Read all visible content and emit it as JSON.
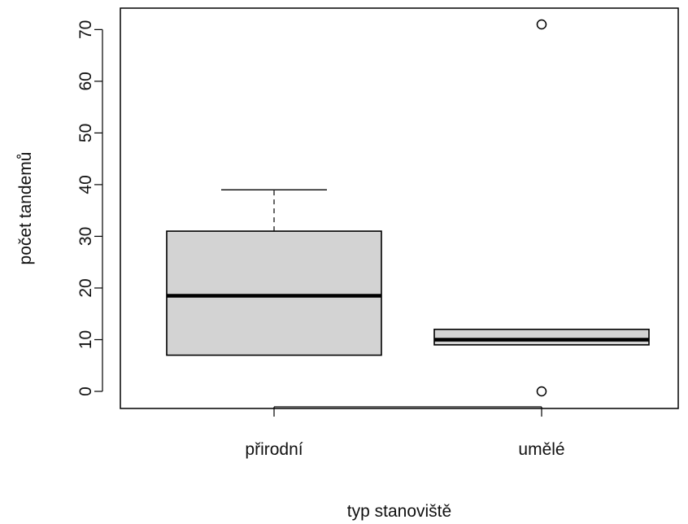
{
  "chart_data": {
    "type": "boxplot",
    "title": "",
    "xlabel": "typ stanoviště",
    "ylabel": "počet tandemů",
    "categories": [
      "přirodní",
      "umělé"
    ],
    "ylim": [
      -3,
      74
    ],
    "yticks": [
      0,
      10,
      20,
      30,
      40,
      50,
      60,
      70
    ],
    "grid": false,
    "boxes": [
      {
        "label": "přirodní",
        "whisker_low": 7,
        "q1": 7,
        "median": 18.5,
        "q3": 31,
        "whisker_high": 39,
        "outliers": []
      },
      {
        "label": "umělé",
        "whisker_low": 9,
        "q1": 9,
        "median": 10,
        "q3": 12,
        "whisker_high": 12,
        "outliers": [
          71,
          0
        ]
      }
    ],
    "colors": {
      "box_fill": "#d3d3d3",
      "stroke": "#000000"
    }
  }
}
